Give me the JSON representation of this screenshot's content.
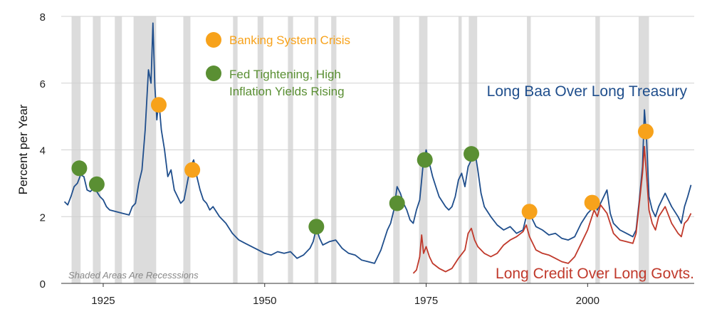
{
  "chart_data": {
    "type": "line",
    "ylabel": "Percent per Year",
    "xlim": [
      1918.5,
      2016.5
    ],
    "ylim": [
      0,
      8
    ],
    "x_ticks": [
      1925,
      1950,
      1975,
      2000
    ],
    "y_ticks": [
      0,
      2,
      4,
      6,
      8
    ],
    "grid": "horizontal",
    "colors": {
      "baa": "#1f4e8c",
      "credit": "#c0392b",
      "crisis": "#f7a21b",
      "tightening": "#5a8f33",
      "recession": "#dcdcdc"
    },
    "note": "Shaded Areas Are Recesssions",
    "legend": [
      {
        "name": "Banking System Crisis",
        "marker": "crisis"
      },
      {
        "name": "Fed Tightening, High\nInflation Yields Rising",
        "marker": "tightening"
      }
    ],
    "recessions": [
      [
        1920.1,
        1921.5
      ],
      [
        1923.4,
        1924.6
      ],
      [
        1926.8,
        1927.9
      ],
      [
        1929.7,
        1933.2
      ],
      [
        1937.4,
        1938.5
      ],
      [
        1945.1,
        1945.8
      ],
      [
        1948.9,
        1949.8
      ],
      [
        1953.6,
        1954.4
      ],
      [
        1957.7,
        1958.3
      ],
      [
        1960.3,
        1961.1
      ],
      [
        1969.9,
        1970.9
      ],
      [
        1973.9,
        1975.2
      ],
      [
        1980.0,
        1980.5
      ],
      [
        1981.6,
        1982.9
      ],
      [
        1990.6,
        1991.2
      ],
      [
        2001.2,
        2001.9
      ],
      [
        2007.9,
        2009.5
      ]
    ],
    "series": [
      {
        "name": "Long Baa Over Long Treasury",
        "color_key": "baa",
        "points": [
          [
            1919.0,
            2.45
          ],
          [
            1919.5,
            2.35
          ],
          [
            1920.0,
            2.6
          ],
          [
            1920.5,
            2.9
          ],
          [
            1921.0,
            3.0
          ],
          [
            1921.5,
            3.25
          ],
          [
            1922.0,
            3.2
          ],
          [
            1922.5,
            2.8
          ],
          [
            1923.0,
            2.75
          ],
          [
            1923.5,
            2.85
          ],
          [
            1924.0,
            2.75
          ],
          [
            1924.5,
            2.6
          ],
          [
            1925.0,
            2.5
          ],
          [
            1925.5,
            2.3
          ],
          [
            1926.0,
            2.2
          ],
          [
            1927.0,
            2.15
          ],
          [
            1928.0,
            2.1
          ],
          [
            1929.0,
            2.05
          ],
          [
            1929.5,
            2.3
          ],
          [
            1930.0,
            2.4
          ],
          [
            1930.5,
            3.0
          ],
          [
            1931.0,
            3.4
          ],
          [
            1931.5,
            4.6
          ],
          [
            1932.0,
            6.4
          ],
          [
            1932.4,
            6.0
          ],
          [
            1932.7,
            7.8
          ],
          [
            1933.0,
            5.9
          ],
          [
            1933.3,
            4.9
          ],
          [
            1933.6,
            5.5
          ],
          [
            1934.0,
            4.6
          ],
          [
            1934.5,
            4.0
          ],
          [
            1935.0,
            3.2
          ],
          [
            1935.5,
            3.4
          ],
          [
            1936.0,
            2.8
          ],
          [
            1936.5,
            2.6
          ],
          [
            1937.0,
            2.4
          ],
          [
            1937.5,
            2.5
          ],
          [
            1938.0,
            3.0
          ],
          [
            1938.5,
            3.5
          ],
          [
            1939.0,
            3.7
          ],
          [
            1939.5,
            3.2
          ],
          [
            1940.0,
            2.8
          ],
          [
            1940.5,
            2.5
          ],
          [
            1941.0,
            2.4
          ],
          [
            1941.5,
            2.2
          ],
          [
            1942.0,
            2.3
          ],
          [
            1943.0,
            2.0
          ],
          [
            1944.0,
            1.8
          ],
          [
            1945.0,
            1.5
          ],
          [
            1946.0,
            1.3
          ],
          [
            1947.0,
            1.2
          ],
          [
            1948.0,
            1.1
          ],
          [
            1949.0,
            1.0
          ],
          [
            1950.0,
            0.9
          ],
          [
            1951.0,
            0.85
          ],
          [
            1952.0,
            0.95
          ],
          [
            1953.0,
            0.9
          ],
          [
            1954.0,
            0.95
          ],
          [
            1955.0,
            0.75
          ],
          [
            1956.0,
            0.85
          ],
          [
            1957.0,
            1.05
          ],
          [
            1957.5,
            1.25
          ],
          [
            1958.0,
            1.65
          ],
          [
            1958.5,
            1.35
          ],
          [
            1959.0,
            1.15
          ],
          [
            1960.0,
            1.25
          ],
          [
            1961.0,
            1.3
          ],
          [
            1962.0,
            1.05
          ],
          [
            1963.0,
            0.9
          ],
          [
            1964.0,
            0.85
          ],
          [
            1965.0,
            0.7
          ],
          [
            1966.0,
            0.65
          ],
          [
            1967.0,
            0.6
          ],
          [
            1968.0,
            1.0
          ],
          [
            1969.0,
            1.6
          ],
          [
            1969.5,
            1.8
          ],
          [
            1970.0,
            2.2
          ],
          [
            1970.5,
            2.9
          ],
          [
            1971.0,
            2.7
          ],
          [
            1971.5,
            2.4
          ],
          [
            1972.0,
            2.2
          ],
          [
            1972.5,
            1.9
          ],
          [
            1973.0,
            1.8
          ],
          [
            1973.5,
            2.2
          ],
          [
            1974.0,
            2.5
          ],
          [
            1974.5,
            3.5
          ],
          [
            1975.0,
            4.0
          ],
          [
            1975.5,
            3.6
          ],
          [
            1976.0,
            3.2
          ],
          [
            1976.5,
            2.9
          ],
          [
            1977.0,
            2.6
          ],
          [
            1978.0,
            2.3
          ],
          [
            1978.5,
            2.2
          ],
          [
            1979.0,
            2.3
          ],
          [
            1979.5,
            2.6
          ],
          [
            1980.0,
            3.1
          ],
          [
            1980.5,
            3.3
          ],
          [
            1981.0,
            2.9
          ],
          [
            1981.5,
            3.5
          ],
          [
            1982.0,
            3.7
          ],
          [
            1982.5,
            4.0
          ],
          [
            1983.0,
            3.4
          ],
          [
            1983.5,
            2.7
          ],
          [
            1984.0,
            2.3
          ],
          [
            1985.0,
            2.0
          ],
          [
            1986.0,
            1.75
          ],
          [
            1987.0,
            1.6
          ],
          [
            1988.0,
            1.7
          ],
          [
            1989.0,
            1.5
          ],
          [
            1990.0,
            1.6
          ],
          [
            1990.5,
            2.0
          ],
          [
            1991.0,
            2.15
          ],
          [
            1991.5,
            1.9
          ],
          [
            1992.0,
            1.7
          ],
          [
            1993.0,
            1.6
          ],
          [
            1994.0,
            1.45
          ],
          [
            1995.0,
            1.5
          ],
          [
            1996.0,
            1.35
          ],
          [
            1997.0,
            1.3
          ],
          [
            1998.0,
            1.4
          ],
          [
            1999.0,
            1.8
          ],
          [
            2000.0,
            2.1
          ],
          [
            2000.5,
            2.2
          ],
          [
            2001.0,
            2.5
          ],
          [
            2001.5,
            2.2
          ],
          [
            2002.0,
            2.4
          ],
          [
            2002.5,
            2.6
          ],
          [
            2003.0,
            2.8
          ],
          [
            2003.5,
            2.1
          ],
          [
            2004.0,
            1.8
          ],
          [
            2005.0,
            1.6
          ],
          [
            2006.0,
            1.5
          ],
          [
            2007.0,
            1.4
          ],
          [
            2007.5,
            1.6
          ],
          [
            2008.0,
            2.5
          ],
          [
            2008.5,
            3.5
          ],
          [
            2008.8,
            5.2
          ],
          [
            2009.1,
            4.4
          ],
          [
            2009.5,
            2.6
          ],
          [
            2010.0,
            2.2
          ],
          [
            2010.5,
            2.0
          ],
          [
            2011.0,
            2.3
          ],
          [
            2012.0,
            2.7
          ],
          [
            2013.0,
            2.3
          ],
          [
            2014.0,
            2.0
          ],
          [
            2014.5,
            1.8
          ],
          [
            2015.0,
            2.3
          ],
          [
            2015.5,
            2.6
          ],
          [
            2016.0,
            2.95
          ]
        ]
      },
      {
        "name": "Long Credit Over Long Govts.",
        "color_key": "credit",
        "points": [
          [
            1973.0,
            0.3
          ],
          [
            1973.5,
            0.4
          ],
          [
            1974.0,
            0.8
          ],
          [
            1974.3,
            1.45
          ],
          [
            1974.6,
            0.9
          ],
          [
            1975.0,
            1.1
          ],
          [
            1975.5,
            0.8
          ],
          [
            1976.0,
            0.6
          ],
          [
            1977.0,
            0.45
          ],
          [
            1978.0,
            0.35
          ],
          [
            1979.0,
            0.45
          ],
          [
            1980.0,
            0.75
          ],
          [
            1981.0,
            1.0
          ],
          [
            1981.5,
            1.5
          ],
          [
            1982.0,
            1.65
          ],
          [
            1982.5,
            1.3
          ],
          [
            1983.0,
            1.1
          ],
          [
            1984.0,
            0.9
          ],
          [
            1985.0,
            0.8
          ],
          [
            1986.0,
            0.9
          ],
          [
            1987.0,
            1.15
          ],
          [
            1988.0,
            1.3
          ],
          [
            1989.0,
            1.4
          ],
          [
            1990.0,
            1.55
          ],
          [
            1990.5,
            1.75
          ],
          [
            1991.0,
            1.4
          ],
          [
            1992.0,
            1.0
          ],
          [
            1993.0,
            0.9
          ],
          [
            1994.0,
            0.85
          ],
          [
            1995.0,
            0.75
          ],
          [
            1996.0,
            0.65
          ],
          [
            1997.0,
            0.6
          ],
          [
            1998.0,
            0.8
          ],
          [
            1999.0,
            1.2
          ],
          [
            2000.0,
            1.6
          ],
          [
            2000.5,
            1.9
          ],
          [
            2001.0,
            2.2
          ],
          [
            2001.5,
            2.0
          ],
          [
            2002.0,
            2.35
          ],
          [
            2003.0,
            2.1
          ],
          [
            2004.0,
            1.5
          ],
          [
            2005.0,
            1.3
          ],
          [
            2006.0,
            1.25
          ],
          [
            2007.0,
            1.2
          ],
          [
            2007.5,
            1.5
          ],
          [
            2008.0,
            2.4
          ],
          [
            2008.5,
            3.3
          ],
          [
            2008.8,
            4.1
          ],
          [
            2009.1,
            3.3
          ],
          [
            2009.5,
            2.2
          ],
          [
            2010.0,
            1.8
          ],
          [
            2010.5,
            1.6
          ],
          [
            2011.0,
            2.0
          ],
          [
            2012.0,
            2.3
          ],
          [
            2013.0,
            1.8
          ],
          [
            2014.0,
            1.5
          ],
          [
            2014.5,
            1.4
          ],
          [
            2015.0,
            1.8
          ],
          [
            2015.5,
            1.9
          ],
          [
            2016.0,
            2.1
          ]
        ]
      }
    ],
    "markers": [
      {
        "x": 1921.3,
        "y": 3.45,
        "type": "tightening"
      },
      {
        "x": 1924.0,
        "y": 2.97,
        "type": "tightening"
      },
      {
        "x": 1933.6,
        "y": 5.35,
        "type": "crisis"
      },
      {
        "x": 1938.8,
        "y": 3.4,
        "type": "crisis"
      },
      {
        "x": 1958.0,
        "y": 1.7,
        "type": "tightening"
      },
      {
        "x": 1970.5,
        "y": 2.4,
        "type": "tightening"
      },
      {
        "x": 1974.8,
        "y": 3.7,
        "type": "tightening"
      },
      {
        "x": 1982.0,
        "y": 3.88,
        "type": "tightening"
      },
      {
        "x": 1991.0,
        "y": 2.15,
        "type": "crisis"
      },
      {
        "x": 2000.7,
        "y": 2.42,
        "type": "crisis"
      },
      {
        "x": 2009.0,
        "y": 4.55,
        "type": "crisis"
      }
    ]
  }
}
